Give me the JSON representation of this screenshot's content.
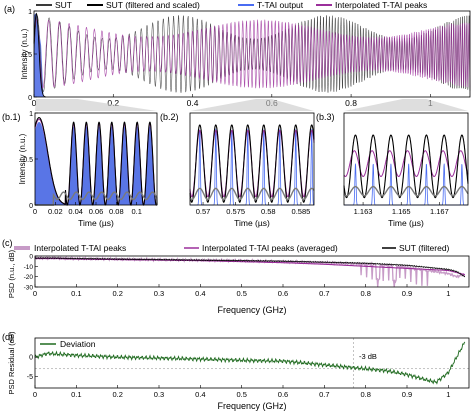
{
  "figure": {
    "panel_labels": [
      "(a)",
      "(b.1)",
      "(b.2)",
      "(b.3)",
      "(c)",
      "(d)"
    ],
    "colors": {
      "sut": "#3a3a3a",
      "sut_filtered": "#000000",
      "ttai_output": "#4a6cf2",
      "ttai_fill": "#2f52e0",
      "interp_peaks": "#9b2f9b",
      "interp_light": "#c79bc7",
      "deviation": "#1f6a1f",
      "zoom_wedge": "#c8c8c8"
    }
  },
  "chart_data": [
    {
      "id": "a",
      "type": "line",
      "legend": [
        "SUT",
        "SUT (filtered and scaled)",
        "T-TAI output",
        "Interpolated T-TAI peaks"
      ],
      "legend_placement": "top",
      "ylabel": "Intensity (n.u.)",
      "xlim": [
        0,
        1.1
      ],
      "ylim": [
        0,
        1
      ],
      "xticks": [
        "0",
        "0.2",
        "0.4",
        "0.6",
        "0.8",
        "1"
      ],
      "yticks": [
        "0",
        "0.5",
        "1"
      ]
    },
    {
      "id": "b1",
      "type": "line",
      "xlabel": "Time (µs)",
      "ylabel": "Intensity (n.u.)",
      "xlim": [
        0,
        0.12
      ],
      "ylim": [
        0,
        1
      ],
      "xticks": [
        "0",
        "0.02",
        "0.04",
        "0.06",
        "0.08",
        "0.1"
      ],
      "yticks": [
        "0",
        "0.5",
        "1"
      ]
    },
    {
      "id": "b2",
      "type": "line",
      "xlabel": "Time (µs)",
      "xlim": [
        0.568,
        0.587
      ],
      "ylim": [
        0,
        1
      ],
      "xticks": [
        "0.57",
        "0.575",
        "0.58",
        "0.585"
      ]
    },
    {
      "id": "b3",
      "type": "line",
      "xlabel": "Time (µs)",
      "xlim": [
        1.162,
        1.1685
      ],
      "ylim": [
        0,
        1
      ],
      "xticks": [
        "1.163",
        "1.165",
        "1.167"
      ]
    },
    {
      "id": "c",
      "type": "line",
      "legend": [
        "Interpolated T-TAI peaks",
        "Interpolated T-TAI peaks (averaged)",
        "SUT (filtered)"
      ],
      "legend_placement": "top",
      "xlabel": "Frequency (GHz)",
      "ylabel": "PSD (n.u., dB)",
      "xlim": [
        0,
        1.05
      ],
      "ylim": [
        -30,
        0
      ],
      "xticks": [
        "0",
        "0.1",
        "0.2",
        "0.3",
        "0.4",
        "0.5",
        "0.6",
        "0.7",
        "0.8",
        "0.9",
        "1"
      ],
      "yticks": [
        "0",
        "-10",
        "-20",
        "-30"
      ],
      "series": [
        {
          "x": [
            0,
            0.05,
            0.1,
            0.2,
            0.3,
            0.4,
            0.5,
            0.6,
            0.7,
            0.8,
            0.85,
            0.9,
            0.95,
            1.0,
            1.02,
            1.04
          ],
          "values": [
            -2,
            -2,
            -2.5,
            -3,
            -3.5,
            -4,
            -4.5,
            -5.5,
            -6.5,
            -8,
            -9,
            -11,
            -14,
            -17,
            -20,
            -18
          ]
        },
        {
          "x": [
            0,
            0.05,
            0.1,
            0.2,
            0.3,
            0.4,
            0.5,
            0.6,
            0.7,
            0.8,
            0.85,
            0.9,
            0.95,
            1.0,
            1.02,
            1.04
          ],
          "values": [
            -2.5,
            -2.5,
            -3,
            -3.5,
            -4,
            -4.5,
            -5.5,
            -6.5,
            -8,
            -10,
            -11,
            -12,
            -13,
            -14,
            -16,
            -18
          ]
        },
        {
          "x": [
            0,
            0.05,
            0.1,
            0.2,
            0.3,
            0.4,
            0.5,
            0.6,
            0.7,
            0.8,
            0.85,
            0.9,
            0.95,
            1.0,
            1.02,
            1.04
          ],
          "values": [
            -2,
            -2,
            -2.5,
            -3,
            -3.5,
            -4,
            -4.5,
            -5,
            -6,
            -7,
            -8,
            -9,
            -11,
            -13,
            -15,
            -20
          ]
        }
      ]
    },
    {
      "id": "d",
      "type": "line",
      "legend": [
        "Deviation"
      ],
      "legend_placement": "top-left",
      "xlabel": "Frequency (GHz)",
      "ylabel": "PSD Residual (dB)",
      "xlim": [
        0,
        1.05
      ],
      "ylim": [
        -8,
        5
      ],
      "xticks": [
        "0",
        "0.1",
        "0.2",
        "0.3",
        "0.4",
        "0.5",
        "0.6",
        "0.7",
        "0.8",
        "0.9",
        "1"
      ],
      "yticks": [
        "0",
        "-5"
      ],
      "annotation": "-3 dB",
      "annotation_x": 0.77,
      "reference_y": -3,
      "series": [
        {
          "x": [
            0,
            0.03,
            0.1,
            0.2,
            0.3,
            0.4,
            0.5,
            0.6,
            0.65,
            0.7,
            0.75,
            0.8,
            0.85,
            0.9,
            0.95,
            0.97,
            1.0,
            1.02,
            1.04
          ],
          "values": [
            0,
            1,
            0.5,
            0,
            -0.2,
            -0.5,
            -0.8,
            -1,
            -1.5,
            -2,
            -2.5,
            -3,
            -3.5,
            -4.5,
            -6,
            -6.5,
            -4,
            0,
            4
          ]
        }
      ]
    }
  ]
}
